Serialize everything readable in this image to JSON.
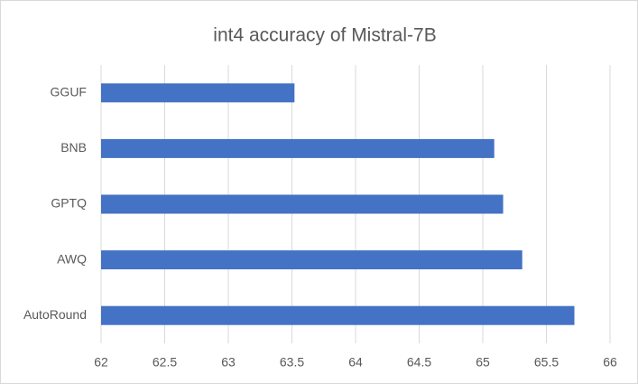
{
  "chart_data": {
    "type": "bar",
    "orientation": "horizontal",
    "title": "int4 accuracy of Mistral-7B",
    "categories": [
      "GGUF",
      "BNB",
      "GPTQ",
      "AWQ",
      "AutoRound"
    ],
    "values": [
      63.52,
      65.09,
      65.16,
      65.31,
      65.72
    ],
    "color": "#4472c4",
    "xlim": [
      62,
      66
    ],
    "xticks": [
      62,
      62.5,
      63,
      63.5,
      64,
      64.5,
      65,
      65.5,
      66
    ],
    "grid": true
  }
}
